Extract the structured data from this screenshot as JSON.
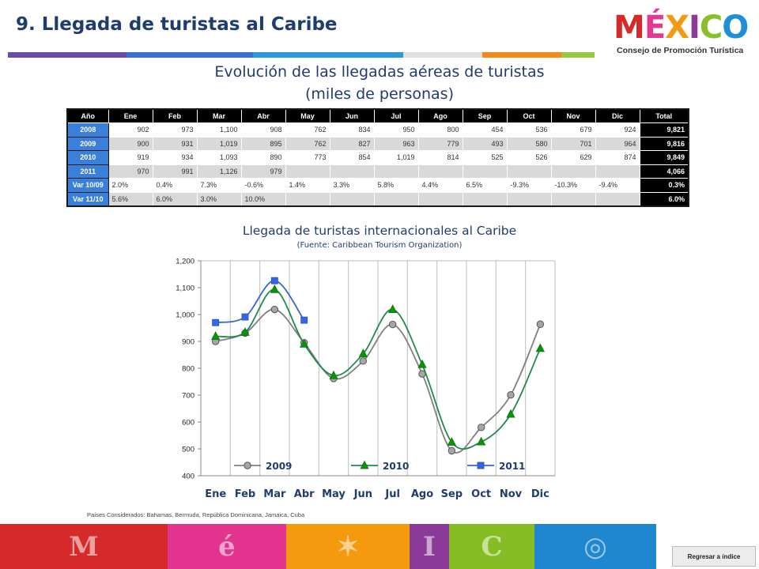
{
  "header": {
    "title": "9. Llegada de turistas al Caribe",
    "rule_colors": [
      "#6a4ea3",
      "#3a6fd8",
      "#2a9ad8",
      "#e0e0e0",
      "#f08a1a",
      "#98c63d"
    ]
  },
  "logo": {
    "word_letters": [
      {
        "ch": "M",
        "color": "#d62a2a"
      },
      {
        "ch": "É",
        "color": "#e23a90"
      },
      {
        "ch": "X",
        "color": "#f29a12"
      },
      {
        "ch": "I",
        "color": "#8a3b9a"
      },
      {
        "ch": "C",
        "color": "#8bbf2a"
      },
      {
        "ch": "O",
        "color": "#1f8fd8"
      }
    ],
    "subtitle": "Consejo de Promoción Turística"
  },
  "table": {
    "title_line1": "Evolución de las llegadas aéreas de turistas",
    "title_line2": "(miles de personas)",
    "headers": [
      "Año",
      "Ene",
      "Feb",
      "Mar",
      "Abr",
      "May",
      "Jun",
      "Jul",
      "Ago",
      "Sep",
      "Oct",
      "Nov",
      "Dic",
      "Total"
    ],
    "rows": [
      {
        "label": "2008",
        "cells": [
          "902",
          "973",
          "1,100",
          "908",
          "762",
          "834",
          "950",
          "800",
          "454",
          "536",
          "679",
          "924"
        ],
        "total": "9,821"
      },
      {
        "label": "2009",
        "cells": [
          "900",
          "931",
          "1,019",
          "895",
          "762",
          "827",
          "963",
          "779",
          "493",
          "580",
          "701",
          "964"
        ],
        "total": "9,816"
      },
      {
        "label": "2010",
        "cells": [
          "919",
          "934",
          "1,093",
          "890",
          "773",
          "854",
          "1,019",
          "814",
          "525",
          "526",
          "629",
          "874"
        ],
        "total": "9,849"
      },
      {
        "label": "2011",
        "cells": [
          "970",
          "991",
          "1,126",
          "979",
          "",
          "",
          "",
          "",
          "",
          "",
          "",
          ""
        ],
        "total": "4,066"
      }
    ],
    "var_rows": [
      {
        "label": "Var 10/09",
        "cells": [
          "2.0%",
          "0.4%",
          "7.3%",
          "-0.6%",
          "1.4%",
          "3.3%",
          "5.8%",
          "4.4%",
          "6.5%",
          "-9.3%",
          "-10.3%",
          "-9.4%"
        ],
        "total": "0.3%"
      },
      {
        "label": "Var 11/10",
        "cells": [
          "5.6%",
          "6.0%",
          "3.0%",
          "10.0%",
          "",
          "",
          "",
          "",
          "",
          "",
          "",
          ""
        ],
        "total": "6.0%"
      }
    ]
  },
  "chart_data": {
    "type": "line",
    "title": "Llegada de turistas internacionales al Caribe",
    "subtitle": "(Fuente: Caribbean Tourism Organization)",
    "categories": [
      "Ene",
      "Feb",
      "Mar",
      "Abr",
      "May",
      "Jun",
      "Jul",
      "Ago",
      "Sep",
      "Oct",
      "Nov",
      "Dic"
    ],
    "ylim": [
      400,
      1200
    ],
    "yticks": [
      400,
      500,
      600,
      700,
      800,
      900,
      1000,
      1100,
      1200
    ],
    "ytick_labels": [
      "400",
      "500",
      "600",
      "700",
      "800",
      "900",
      "1,000",
      "1,100",
      "1,200"
    ],
    "grid": "vertical category lines",
    "legend_position": "bottom-inside",
    "series": [
      {
        "name": "2009",
        "color": "#808080",
        "marker": "circle",
        "marker_color": "#a6a6a6",
        "values": [
          900,
          931,
          1019,
          895,
          762,
          827,
          963,
          779,
          493,
          580,
          701,
          964
        ]
      },
      {
        "name": "2010",
        "color": "#1f8a4c",
        "marker": "triangle",
        "marker_color": "#009a00",
        "values": [
          919,
          934,
          1093,
          890,
          773,
          854,
          1019,
          814,
          525,
          526,
          629,
          874
        ]
      },
      {
        "name": "2011",
        "color": "#3366cc",
        "marker": "square",
        "marker_color": "#3366ee",
        "values": [
          970,
          991,
          1126,
          979,
          null,
          null,
          null,
          null,
          null,
          null,
          null,
          null
        ]
      }
    ]
  },
  "footnote": "Países Considerados: Bahamas, Bermuda, República Dominicana, Jamaica, Cuba",
  "footer": {
    "bands": [
      {
        "color": "#d62a2a",
        "glyph": "M"
      },
      {
        "color": "#e2338e",
        "glyph": "é"
      },
      {
        "color": "#f5990f",
        "glyph": "✶"
      },
      {
        "color": "#8a3b9a",
        "glyph": "I"
      },
      {
        "color": "#86bd25",
        "glyph": "C"
      },
      {
        "color": "#1f86d0",
        "glyph": "◎"
      }
    ],
    "back_label": "Regresar a índice"
  }
}
